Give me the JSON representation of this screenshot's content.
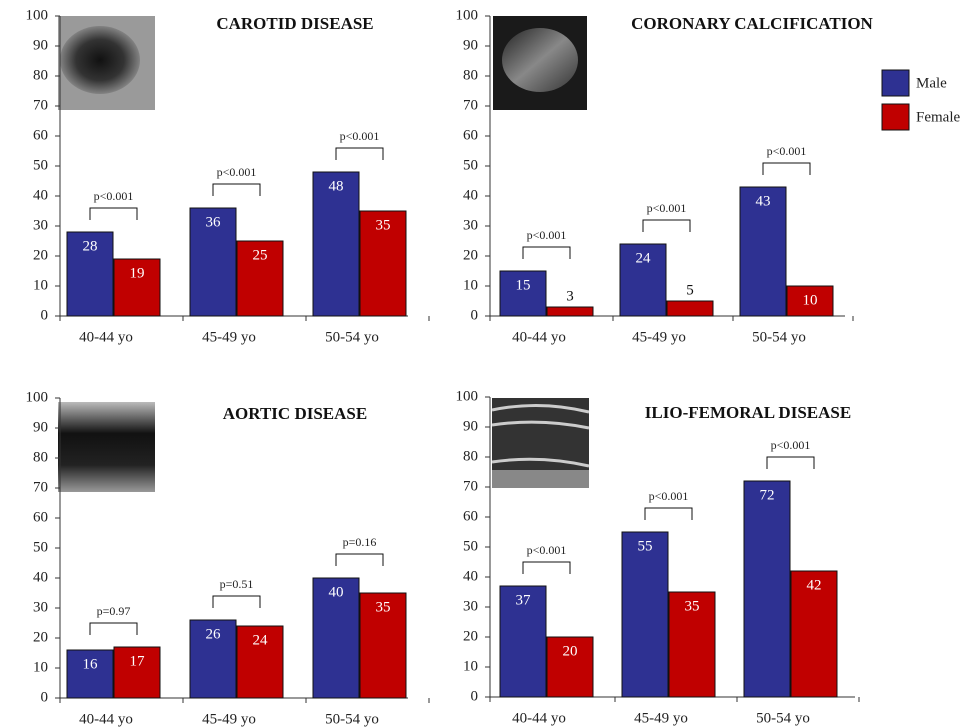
{
  "chart_data": [
    {
      "type": "bar",
      "title": "CAROTID DISEASE",
      "categories": [
        "40-44 yo",
        "45-49 yo",
        "50-54 yo"
      ],
      "series": [
        {
          "color": "#2e3192",
          "values": [
            28,
            36,
            48
          ]
        },
        {
          "color": "#c00000",
          "values": [
            19,
            25,
            35
          ]
        }
      ],
      "annotations": [
        "p<0.001",
        "p<0.001",
        "p<0.001"
      ],
      "ylim": [
        0,
        100
      ],
      "yticks": [
        0,
        10,
        20,
        30,
        40,
        50,
        60,
        70,
        80,
        90,
        100
      ]
    },
    {
      "type": "bar",
      "title": "CORONARY CALCIFICATION",
      "categories": [
        "40-44 yo",
        "45-49 yo",
        "50-54 yo"
      ],
      "series": [
        {
          "name": "Male",
          "color": "#2e3192",
          "values": [
            15,
            24,
            43
          ]
        },
        {
          "name": "Female",
          "color": "#c00000",
          "values": [
            3,
            5,
            10
          ]
        }
      ],
      "annotations": [
        "p<0.001",
        "p<0.001",
        "p<0.001"
      ],
      "ylim": [
        0,
        100
      ],
      "yticks": [
        0,
        10,
        20,
        30,
        40,
        50,
        60,
        70,
        80,
        90,
        100
      ]
    },
    {
      "type": "bar",
      "title": "AORTIC DISEASE",
      "categories": [
        "40-44 yo",
        "45-49 yo",
        "50-54 yo"
      ],
      "series": [
        {
          "color": "#2e3192",
          "values": [
            16,
            26,
            40
          ]
        },
        {
          "color": "#c00000",
          "values": [
            17,
            24,
            35
          ]
        }
      ],
      "annotations": [
        "p=0.97",
        "p=0.51",
        "p=0.16"
      ],
      "ylim": [
        0,
        100
      ],
      "yticks": [
        0,
        10,
        20,
        30,
        40,
        50,
        60,
        70,
        80,
        90,
        100
      ]
    },
    {
      "type": "bar",
      "title": "ILIO-FEMORAL DISEASE",
      "categories": [
        "40-44 yo",
        "45-49 yo",
        "50-54 yo"
      ],
      "series": [
        {
          "color": "#2e3192",
          "values": [
            37,
            55,
            72
          ]
        },
        {
          "color": "#c00000",
          "values": [
            20,
            35,
            42
          ]
        }
      ],
      "annotations": [
        "p<0.001",
        "p<0.001",
        "p<0.001"
      ],
      "ylim": [
        0,
        100
      ],
      "yticks": [
        0,
        10,
        20,
        30,
        40,
        50,
        60,
        70,
        80,
        90,
        100
      ]
    }
  ]
}
